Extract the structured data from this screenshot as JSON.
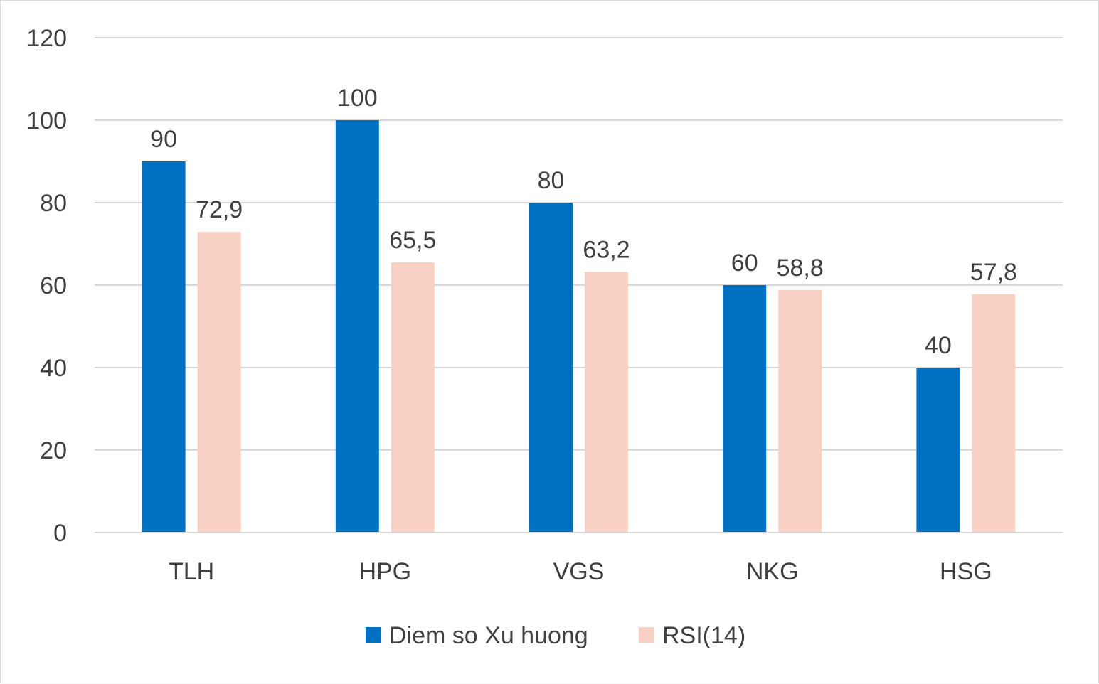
{
  "chart_data": {
    "type": "bar",
    "title": "",
    "xlabel": "",
    "ylabel": "",
    "categories": [
      "TLH",
      "HPG",
      "VGS",
      "NKG",
      "HSG"
    ],
    "series": [
      {
        "name": "Diem so Xu huong",
        "color": "#0070c0",
        "values": [
          90,
          100,
          80,
          60,
          40
        ],
        "labels": [
          "90",
          "100",
          "80",
          "60",
          "40"
        ]
      },
      {
        "name": "RSI(14)",
        "color": "#f8d0c4",
        "values": [
          72.9,
          65.5,
          63.2,
          58.8,
          57.8
        ],
        "labels": [
          "72,9",
          "65,5",
          "63,2",
          "58,8",
          "57,8"
        ]
      }
    ],
    "ylim": [
      0,
      120
    ],
    "yticks": [
      0,
      20,
      40,
      60,
      80,
      100,
      120
    ],
    "grid": true,
    "gridline_color": "#d9d9d9",
    "legend_position": "bottom"
  }
}
